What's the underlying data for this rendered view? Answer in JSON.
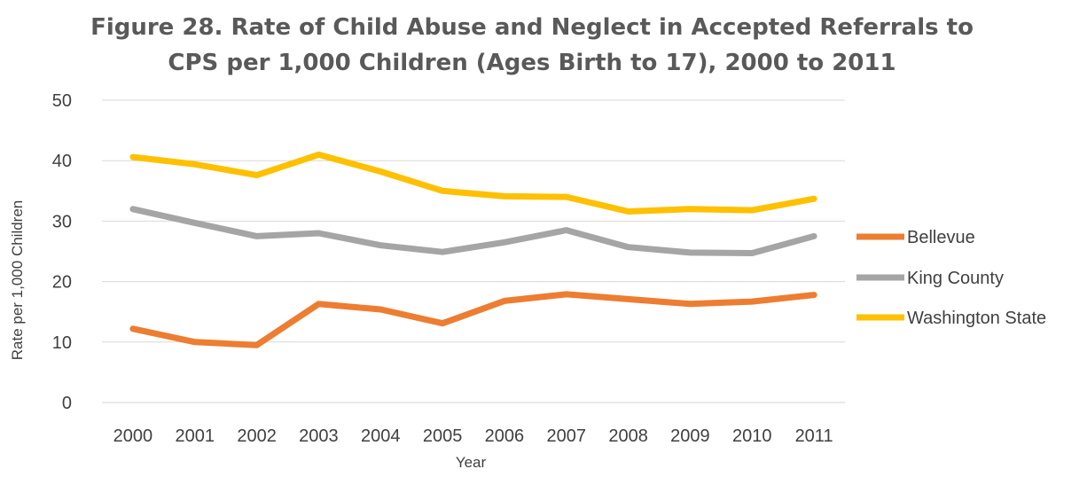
{
  "chart_data": {
    "type": "line",
    "title_lines": [
      "Figure 28. Rate of Child Abuse and Neglect in Accepted Referrals to",
      "CPS per 1,000 Children (Ages Birth to 17), 2000 to 2011"
    ],
    "xlabel": "Year",
    "ylabel": "Rate per 1,000 Children",
    "categories": [
      "2000",
      "2001",
      "2002",
      "2003",
      "2004",
      "2005",
      "2006",
      "2007",
      "2008",
      "2009",
      "2010",
      "2011"
    ],
    "ylim": [
      0,
      50
    ],
    "yticks": [
      "0",
      "10",
      "20",
      "30",
      "40",
      "50"
    ],
    "grid": true,
    "legend_position": "right",
    "series": [
      {
        "name": "Bellevue",
        "color": "#ED7D31",
        "values": [
          12.2,
          10.0,
          9.5,
          16.3,
          15.4,
          13.1,
          16.8,
          17.9,
          17.1,
          16.3,
          16.7,
          17.8
        ]
      },
      {
        "name": "King County",
        "color": "#A5A5A5",
        "values": [
          32.0,
          29.7,
          27.5,
          28.0,
          26.0,
          24.9,
          26.5,
          28.5,
          25.7,
          24.8,
          24.7,
          27.5
        ]
      },
      {
        "name": "Washington State",
        "color": "#FFC000",
        "values": [
          40.6,
          39.4,
          37.6,
          41.0,
          38.2,
          35.0,
          34.1,
          34.0,
          31.6,
          32.0,
          31.8,
          33.7
        ]
      }
    ]
  }
}
